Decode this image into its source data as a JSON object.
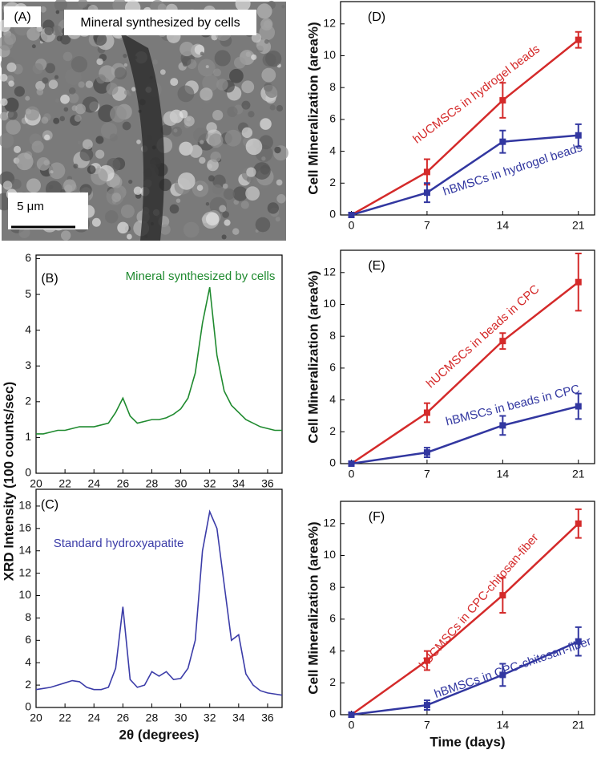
{
  "panel_a": {
    "label": "(A)",
    "caption": "Mineral synthesized by cells",
    "scale_bar": "5 μm"
  },
  "chart_data": [
    {
      "type": "line",
      "panel_label": "(B)",
      "annotation": "Mineral synthesized by cells",
      "ylabel": "XRD Intensity (100 counts/sec)",
      "x": [
        20,
        20.5,
        21,
        21.5,
        22,
        22.5,
        23,
        23.5,
        24,
        24.5,
        25,
        25.5,
        26,
        26.5,
        27,
        27.5,
        28,
        28.5,
        29,
        29.5,
        30,
        30.5,
        31,
        31.5,
        32,
        32.5,
        33,
        33.5,
        34,
        34.5,
        35,
        35.5,
        36,
        36.5,
        37
      ],
      "series": [
        {
          "name": null,
          "color": "#1f8a2f",
          "values": [
            1.1,
            1.1,
            1.15,
            1.2,
            1.2,
            1.25,
            1.3,
            1.3,
            1.3,
            1.35,
            1.4,
            1.7,
            2.1,
            1.6,
            1.4,
            1.45,
            1.5,
            1.5,
            1.55,
            1.65,
            1.8,
            2.1,
            2.8,
            4.2,
            5.2,
            3.3,
            2.3,
            1.9,
            1.7,
            1.5,
            1.4,
            1.3,
            1.25,
            1.2,
            1.2
          ]
        }
      ],
      "xlim": [
        20,
        37
      ],
      "xticks": [
        20,
        22,
        24,
        26,
        28,
        30,
        32,
        34,
        36
      ],
      "ylim": [
        0,
        6.1
      ],
      "yticks": [
        0,
        1,
        2,
        3,
        4,
        5,
        6
      ]
    },
    {
      "type": "line",
      "panel_label": "(C)",
      "annotation": "Standard hydroxyapatite",
      "xlabel": "2θ (degrees)",
      "x": [
        20,
        20.5,
        21,
        21.5,
        22,
        22.5,
        23,
        23.5,
        24,
        24.5,
        25,
        25.5,
        26,
        26.5,
        27,
        27.5,
        28,
        28.5,
        29,
        29.5,
        30,
        30.5,
        31,
        31.5,
        32,
        32.5,
        33,
        33.5,
        34,
        34.5,
        35,
        35.5,
        36,
        36.5,
        37
      ],
      "series": [
        {
          "name": null,
          "color": "#3b3ca8",
          "values": [
            1.6,
            1.7,
            1.8,
            2.0,
            2.2,
            2.4,
            2.3,
            1.8,
            1.6,
            1.6,
            1.8,
            3.5,
            9.0,
            2.5,
            1.8,
            2.0,
            3.2,
            2.8,
            3.2,
            2.5,
            2.6,
            3.5,
            6.0,
            14.0,
            17.5,
            16.0,
            11.0,
            6.0,
            6.5,
            3.0,
            2.0,
            1.5,
            1.3,
            1.2,
            1.1
          ]
        }
      ],
      "xlim": [
        20,
        37
      ],
      "xticks": [
        20,
        22,
        24,
        26,
        28,
        30,
        32,
        34,
        36
      ],
      "ylim": [
        0,
        19.5
      ],
      "yticks": [
        0,
        2,
        4,
        6,
        8,
        10,
        12,
        14,
        16,
        18
      ]
    },
    {
      "type": "errorline",
      "panel_label": "(D)",
      "ylabel": "Cell Mineralization  (area%)",
      "x": [
        0,
        7,
        14,
        21
      ],
      "series": [
        {
          "name": "hUCMSCs in hydrogel beads",
          "color": "#d42a2a",
          "values": [
            0,
            2.7,
            7.2,
            11.0
          ],
          "errors": [
            0,
            0.8,
            1.1,
            0.5
          ]
        },
        {
          "name": "hBMSCs in hydrogel beads",
          "color": "#3237a0",
          "values": [
            0,
            1.4,
            4.6,
            5.0
          ],
          "errors": [
            0,
            0.6,
            0.7,
            0.7
          ]
        }
      ],
      "xlim": [
        -1,
        22.5
      ],
      "xticks": [
        0,
        7,
        14,
        21
      ],
      "ylim": [
        0,
        13.4
      ],
      "yticks": [
        0,
        2,
        4,
        6,
        8,
        10,
        12
      ]
    },
    {
      "type": "errorline",
      "panel_label": "(E)",
      "ylabel": "Cell Mineralization  (area%)",
      "x": [
        0,
        7,
        14,
        21
      ],
      "series": [
        {
          "name": "hUCMSCs in beads in CPC",
          "color": "#d42a2a",
          "values": [
            0,
            3.2,
            7.7,
            11.4
          ],
          "errors": [
            0,
            0.6,
            0.5,
            1.8
          ]
        },
        {
          "name": "hBMSCs in beads in CPC",
          "color": "#3237a0",
          "values": [
            0,
            0.7,
            2.4,
            3.6
          ],
          "errors": [
            0,
            0.3,
            0.6,
            0.8
          ]
        }
      ],
      "xlim": [
        -1,
        22.5
      ],
      "xticks": [
        0,
        7,
        14,
        21
      ],
      "ylim": [
        0,
        13.4
      ],
      "yticks": [
        0,
        2,
        4,
        6,
        8,
        10,
        12
      ]
    },
    {
      "type": "errorline",
      "panel_label": "(F)",
      "ylabel": "Cell Mineralization  (area%)",
      "xlabel": "Time (days)",
      "x": [
        0,
        7,
        14,
        21
      ],
      "series": [
        {
          "name": "hUCMSCs in CPC-chitosan-fiber",
          "color": "#d42a2a",
          "values": [
            0,
            3.4,
            7.5,
            12.0
          ],
          "errors": [
            0,
            0.6,
            1.1,
            0.9
          ]
        },
        {
          "name": "hBMSCs in CPC-chitosan-fiber",
          "color": "#3237a0",
          "values": [
            0,
            0.6,
            2.5,
            4.6
          ],
          "errors": [
            0,
            0.3,
            0.7,
            0.9
          ]
        }
      ],
      "xlim": [
        -1,
        22.5
      ],
      "xticks": [
        0,
        7,
        14,
        21
      ],
      "ylim": [
        0,
        13.4
      ],
      "yticks": [
        0,
        2,
        4,
        6,
        8,
        10,
        12
      ]
    }
  ]
}
